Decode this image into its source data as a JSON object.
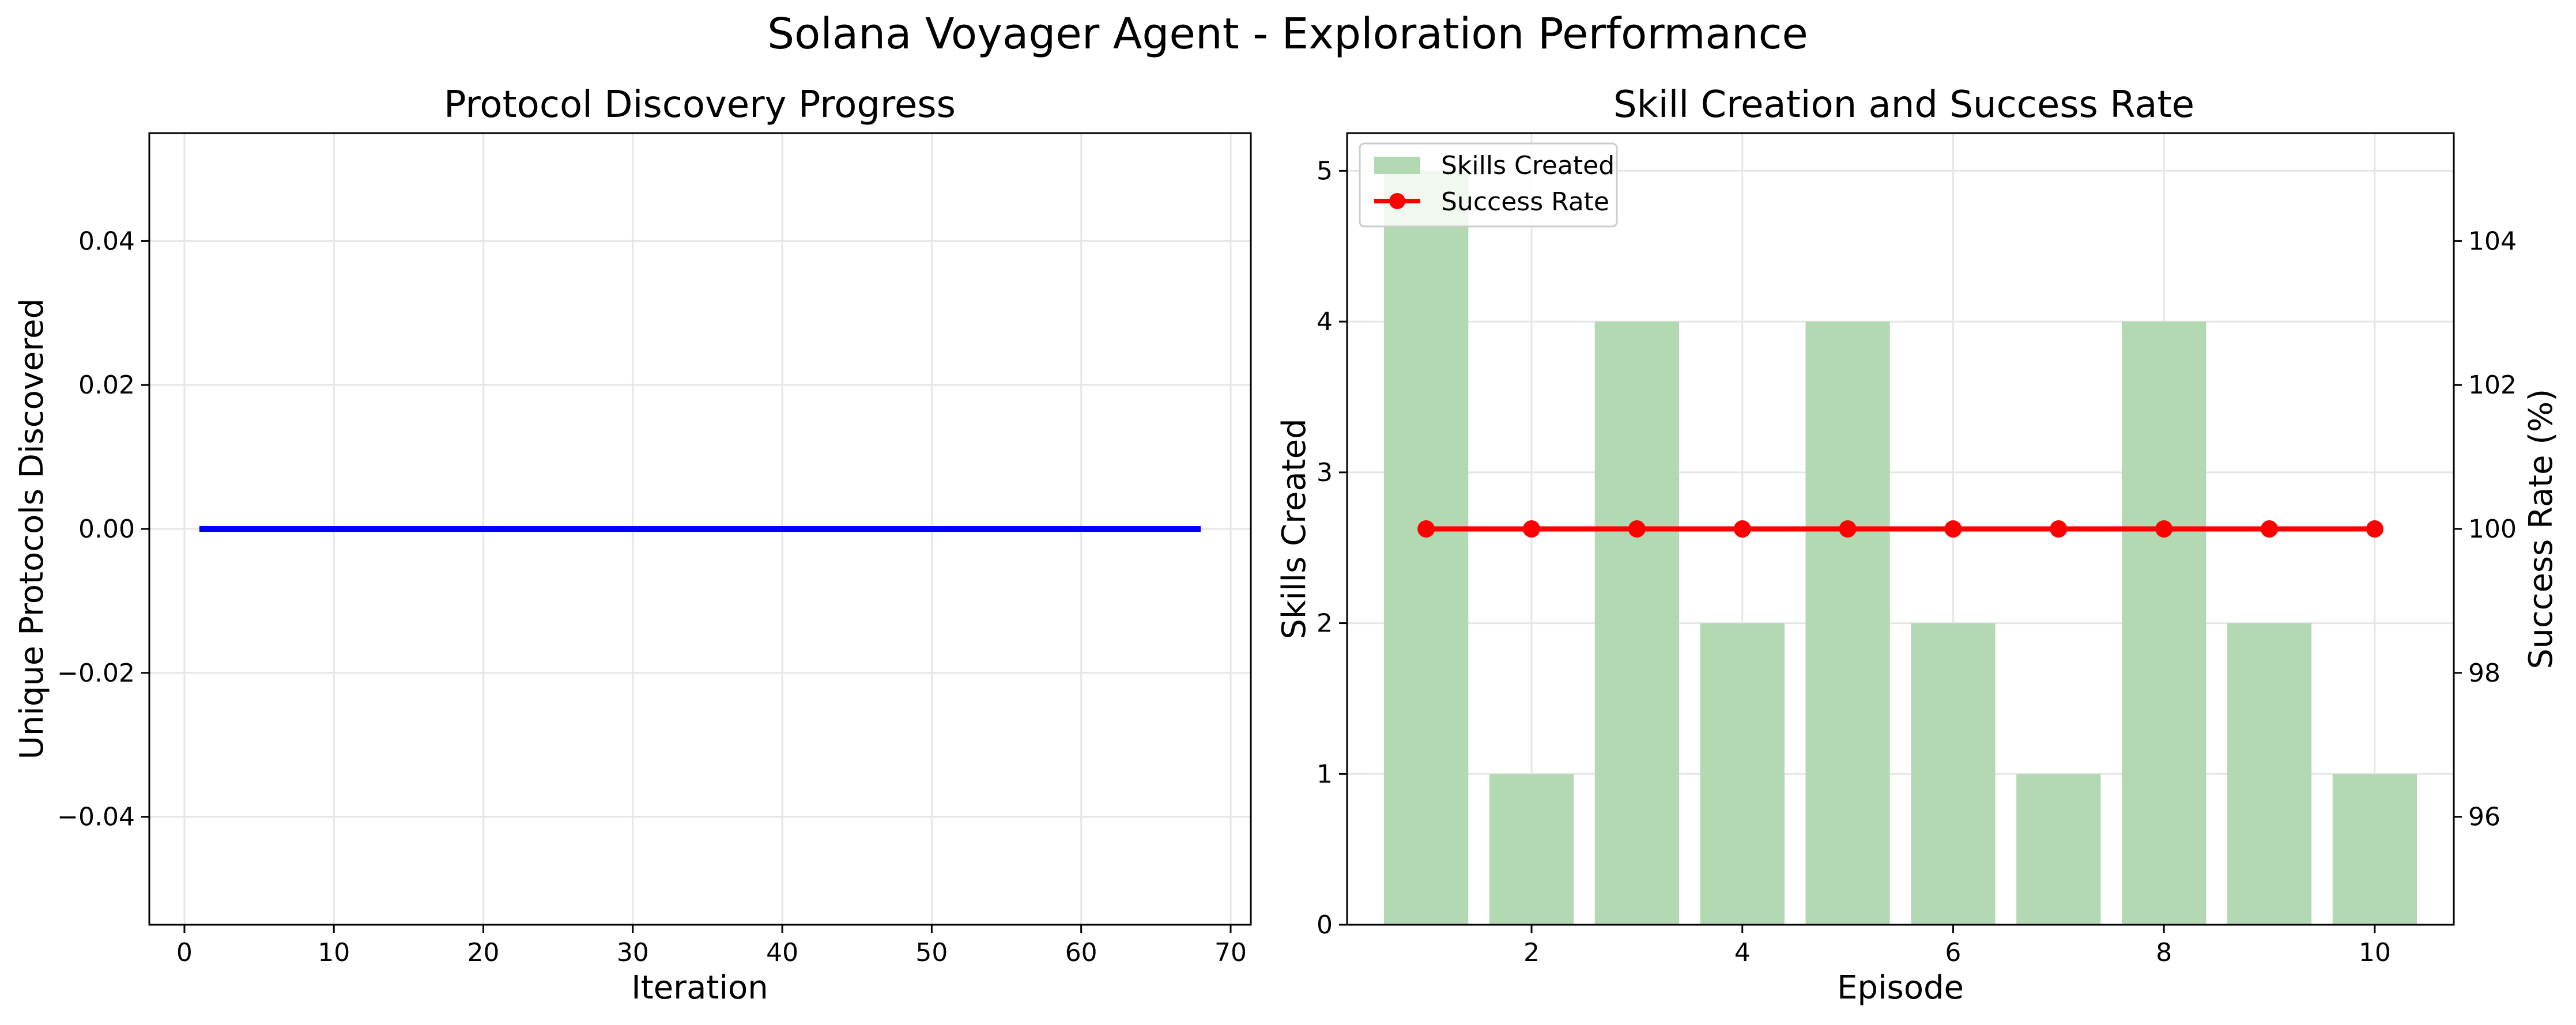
{
  "figure": {
    "title": "Solana Voyager Agent - Exploration Performance"
  },
  "colors": {
    "line_blue": "#0000ff",
    "bar_green": "#b3d9b3",
    "axis_green": "#008000",
    "red": "#ff0000",
    "grid": "#e6e6e6"
  },
  "chart_data": [
    {
      "type": "line",
      "title": "Protocol Discovery Progress",
      "xlabel": "Iteration",
      "ylabel": "Unique Protocols Discovered",
      "xlim": [
        -2.35,
        71.35
      ],
      "ylim": [
        -0.055,
        0.055
      ],
      "grid": true,
      "x_ticks": [
        0,
        10,
        20,
        30,
        40,
        50,
        60,
        70
      ],
      "y_ticks": [
        -0.04,
        -0.02,
        0.0,
        0.02,
        0.04
      ],
      "y_tick_labels": [
        "−0.04",
        "−0.02",
        "0.00",
        "0.02",
        "0.04"
      ],
      "series": [
        {
          "x_start": 1,
          "x_end": 68,
          "constant_y": 0.0,
          "color": "#0000ff"
        }
      ]
    },
    {
      "type": "bar+line",
      "title": "Skill Creation and Success Rate",
      "xlabel": "Episode",
      "ylabel_left": "Skills Created",
      "ylabel_right": "Success Rate (%)",
      "xlim": [
        0.25,
        10.75
      ],
      "ylim_left": [
        0,
        5.25
      ],
      "ylim_right": [
        94.5,
        105.5
      ],
      "grid": true,
      "legend_position": "upper-left",
      "categories": [
        1,
        2,
        3,
        4,
        5,
        6,
        7,
        8,
        9,
        10
      ],
      "x_ticks": [
        2,
        4,
        6,
        8,
        10
      ],
      "y_ticks_left": [
        0,
        1,
        2,
        3,
        4,
        5
      ],
      "y_ticks_right": [
        96,
        98,
        100,
        102,
        104
      ],
      "series": [
        {
          "name": "Skills Created",
          "kind": "bar",
          "axis": "left",
          "values": [
            5,
            1,
            4,
            2,
            4,
            2,
            1,
            4,
            2,
            1
          ]
        },
        {
          "name": "Success Rate",
          "kind": "line",
          "axis": "right",
          "values": [
            100,
            100,
            100,
            100,
            100,
            100,
            100,
            100,
            100,
            100
          ]
        }
      ]
    }
  ]
}
